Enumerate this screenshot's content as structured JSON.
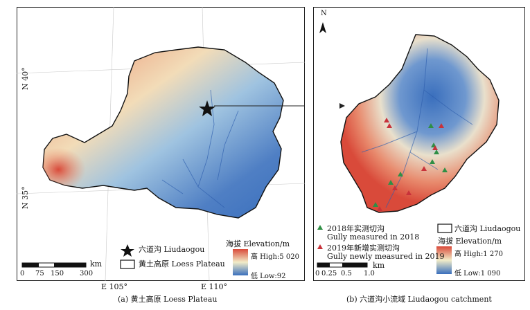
{
  "panel_a": {
    "caption": "(a) 黄土高原 Loess Plateau",
    "lat_labels": [
      "N 40°",
      "N 35°"
    ],
    "lon_labels": [
      "E 105°",
      "E 110°"
    ],
    "site_label": "六道沟 Liudaogou",
    "boundary_label": "黄土高原 Loess Plateau",
    "scale": {
      "unit": "km",
      "ticks": [
        "0",
        "75",
        "150",
        "300"
      ]
    },
    "elevation": {
      "title": "海拔 Elevation/m",
      "high": "高 High:5 020",
      "low": "低 Low:92"
    }
  },
  "panel_b": {
    "caption": "(b) 六道沟小流域 Liudaogou catchment",
    "north": "N",
    "legend": {
      "gully_2018_cn": "2018年实测切沟",
      "gully_2018_en": "Gully measured in 2018",
      "gully_2019_cn": "2019年新增实测切沟",
      "gully_2019_en": "Gully newly measured in 2019",
      "boundary": "六道沟 Liudaogou"
    },
    "elevation": {
      "title": "海拔 Elevation/m",
      "high": "高 High:1 270",
      "low": "低 Low:1 090"
    },
    "scale": {
      "unit": "km",
      "ticks": [
        "0",
        "0.25",
        "0.5",
        "1.0"
      ]
    }
  },
  "colors": {
    "high": "#d94a3a",
    "mid": "#f2ecc8",
    "low": "#3a6fbd",
    "gully_2018": "#2f8f45",
    "gully_2019": "#c8323a"
  }
}
